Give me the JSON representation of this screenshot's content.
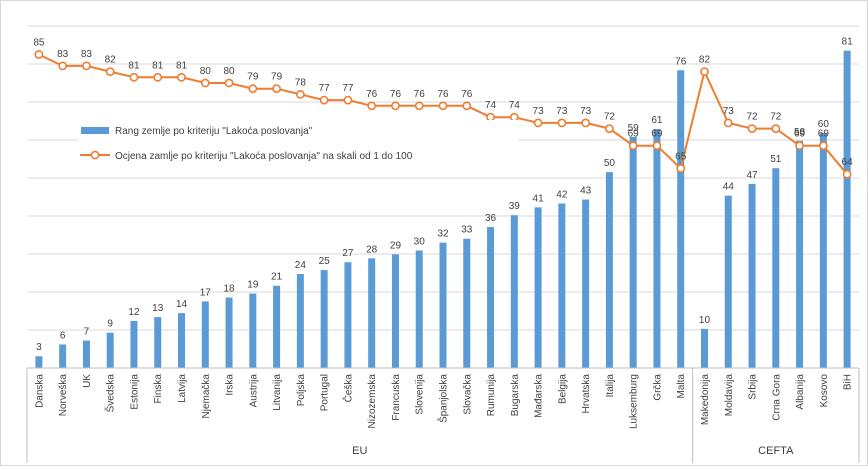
{
  "chart_data": {
    "type": "bar",
    "categories": [
      "Danska",
      "Norveška",
      "UK",
      "Švedska",
      "Estonija",
      "Finska",
      "Latvija",
      "Njemačka",
      "Irska",
      "Austrija",
      "Litvanija",
      "Poljska",
      "Portugal",
      "Češka",
      "Nizozemska",
      "Francuska",
      "Slovenija",
      "Španjolska",
      "Slovačka",
      "Rumunija",
      "Bugarska",
      "Mađarska",
      "Belgija",
      "Hrvatska",
      "Italija",
      "Luksemburg",
      "Grčka",
      "Malta",
      "Makedonija",
      "Moldavija",
      "Srbija",
      "Crna Gora",
      "Albanija",
      "Kosovo",
      "BiH"
    ],
    "groups": [
      {
        "label": "EU",
        "count": 28
      },
      {
        "label": "CEFTA",
        "count": 7
      }
    ],
    "series": [
      {
        "name": "Rang zemlje po kriteriju \"Lakoća poslovanja\"",
        "type": "bar",
        "color": "#5b9bd5",
        "values": [
          3,
          6,
          7,
          9,
          12,
          13,
          14,
          17,
          18,
          19,
          21,
          24,
          25,
          27,
          28,
          29,
          30,
          32,
          33,
          36,
          39,
          41,
          42,
          43,
          50,
          59,
          61,
          76,
          10,
          44,
          47,
          51,
          58,
          60,
          81
        ]
      },
      {
        "name": "Ocjena zamlje po kriteriju \"Lakoća poslovanja\" na skali od 1 do 100",
        "type": "line",
        "color": "#ed7d31",
        "values": [
          85,
          83,
          83,
          82,
          81,
          81,
          81,
          80,
          80,
          79,
          79,
          78,
          77,
          77,
          76,
          76,
          76,
          76,
          76,
          74,
          74,
          73,
          73,
          73,
          72,
          69,
          69,
          65,
          82,
          73,
          72,
          72,
          69,
          69,
          64
        ]
      }
    ],
    "bar_ylim": [
      0,
      85
    ],
    "line_ylim": [
      30,
      90
    ],
    "grid": true,
    "legend_position": "left-middle"
  }
}
